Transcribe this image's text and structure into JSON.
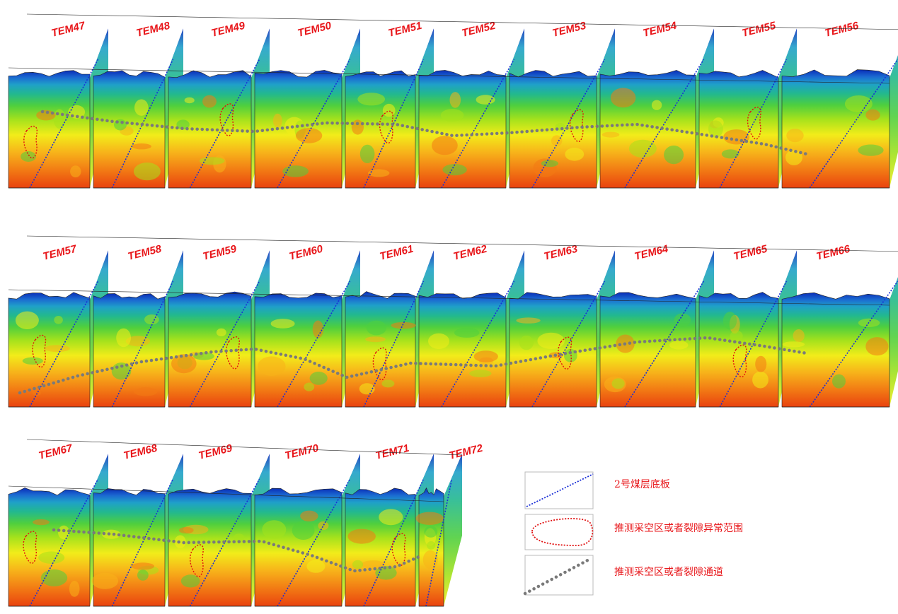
{
  "profiles": {
    "row1": [
      "TEM47",
      "TEM48",
      "TEM49",
      "TEM50",
      "TEM51",
      "TEM52",
      "TEM53",
      "TEM54",
      "TEM55",
      "TEM56"
    ],
    "row2": [
      "TEM57",
      "TEM58",
      "TEM59",
      "TEM60",
      "TEM61",
      "TEM62",
      "TEM63",
      "TEM64",
      "TEM65",
      "TEM66"
    ],
    "row3": [
      "TEM67",
      "TEM68",
      "TEM69",
      "TEM70",
      "TEM71",
      "TEM72"
    ]
  },
  "legend": {
    "coal_floor": "2号煤层底板",
    "anomaly_range": "推测采空区或者裂隙异常范围",
    "fracture_channel": "推测采空区或者裂隙通道"
  },
  "colors": {
    "text_red": "#e8161a",
    "coal_floor_line": "#1a2fd6",
    "anomaly_outline": "#e01010",
    "channel_dots": "#7a7a7a",
    "scale": [
      "#0a2db8",
      "#1b6ad1",
      "#1fa0c9",
      "#22b88f",
      "#4fcf3e",
      "#a6e21c",
      "#f2ec1a",
      "#f7b21a",
      "#f27a14",
      "#e9420f"
    ]
  },
  "icons": {
    "coal_floor": "blue-dotted-line-icon",
    "anomaly_range": "red-dotted-ellipse-icon",
    "fracture_channel": "gray-dotted-line-icon"
  }
}
